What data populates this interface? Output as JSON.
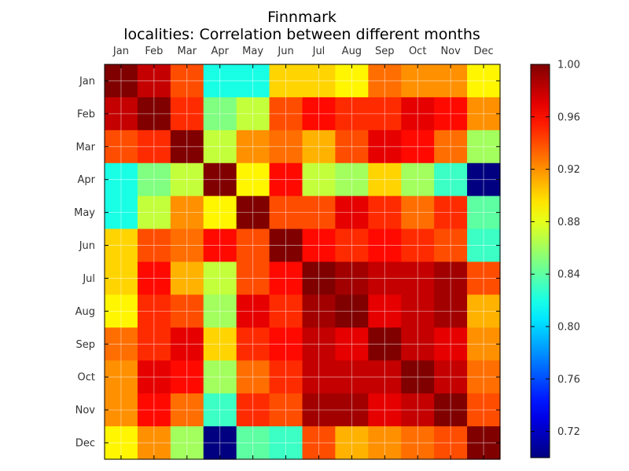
{
  "chart_data": {
    "type": "heatmap",
    "title": "Finnmark",
    "subtitle": "localities: Correlation between different months",
    "rows": [
      "Jan",
      "Feb",
      "Mar",
      "Apr",
      "May",
      "Jun",
      "Jul",
      "Aug",
      "Sep",
      "Oct",
      "Nov",
      "Dec"
    ],
    "columns": [
      "Jan",
      "Feb",
      "Mar",
      "Apr",
      "May",
      "Jun",
      "Jul",
      "Aug",
      "Sep",
      "Oct",
      "Nov",
      "Dec"
    ],
    "values": [
      [
        1.0,
        0.98,
        0.94,
        0.82,
        0.82,
        0.9,
        0.9,
        0.89,
        0.93,
        0.92,
        0.92,
        0.89
      ],
      [
        0.98,
        1.0,
        0.95,
        0.85,
        0.87,
        0.94,
        0.96,
        0.95,
        0.95,
        0.97,
        0.96,
        0.92
      ],
      [
        0.94,
        0.95,
        1.0,
        0.87,
        0.92,
        0.93,
        0.91,
        0.94,
        0.97,
        0.96,
        0.93,
        0.86
      ],
      [
        0.82,
        0.85,
        0.87,
        1.0,
        0.89,
        0.96,
        0.87,
        0.86,
        0.9,
        0.86,
        0.83,
        0.7
      ],
      [
        0.82,
        0.87,
        0.92,
        0.89,
        1.0,
        0.94,
        0.94,
        0.97,
        0.95,
        0.93,
        0.95,
        0.84
      ],
      [
        0.9,
        0.94,
        0.93,
        0.96,
        0.94,
        1.0,
        0.96,
        0.95,
        0.96,
        0.95,
        0.94,
        0.83
      ],
      [
        0.9,
        0.96,
        0.91,
        0.87,
        0.94,
        0.96,
        1.0,
        0.99,
        0.98,
        0.98,
        0.99,
        0.94
      ],
      [
        0.89,
        0.95,
        0.94,
        0.86,
        0.97,
        0.95,
        0.99,
        1.0,
        0.97,
        0.98,
        0.99,
        0.91
      ],
      [
        0.93,
        0.95,
        0.97,
        0.9,
        0.95,
        0.96,
        0.98,
        0.97,
        1.0,
        0.98,
        0.97,
        0.92
      ],
      [
        0.92,
        0.97,
        0.96,
        0.86,
        0.93,
        0.95,
        0.98,
        0.98,
        0.98,
        1.0,
        0.98,
        0.93
      ],
      [
        0.92,
        0.96,
        0.93,
        0.83,
        0.95,
        0.94,
        0.99,
        0.99,
        0.97,
        0.98,
        1.0,
        0.94
      ],
      [
        0.89,
        0.92,
        0.86,
        0.7,
        0.84,
        0.83,
        0.94,
        0.91,
        0.92,
        0.93,
        0.94,
        1.0
      ]
    ],
    "colorbar": {
      "range": [
        0.7,
        1.0
      ],
      "ticks": [
        "0.72",
        "0.76",
        "0.80",
        "0.84",
        "0.88",
        "0.92",
        "0.96",
        "1.00"
      ],
      "colormap": "jet"
    },
    "grid": true
  }
}
